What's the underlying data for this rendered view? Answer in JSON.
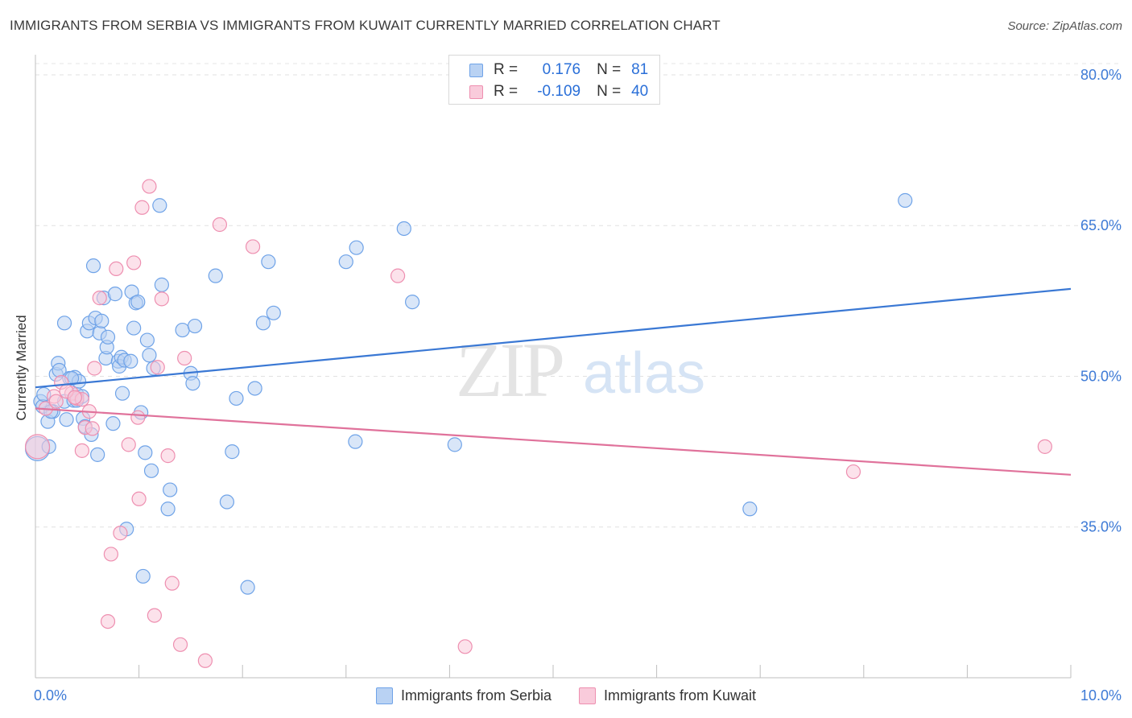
{
  "title": "IMMIGRANTS FROM SERBIA VS IMMIGRANTS FROM KUWAIT CURRENTLY MARRIED CORRELATION CHART",
  "source": "Source: ZipAtlas.com",
  "watermark": {
    "zip": "ZIP",
    "atlas": "atlas"
  },
  "legend": {
    "r_label": "R =",
    "n_label": "N =",
    "rows": [
      {
        "r": "0.176",
        "n": "81",
        "color": "#6fa3e8",
        "fill": "#b9d2f3"
      },
      {
        "r": "-0.109",
        "n": "40",
        "color": "#ee8fb0",
        "fill": "#f9cbdb"
      }
    ]
  },
  "bottom_legend": [
    "Immigrants from Serbia",
    "Immigrants from Kuwait"
  ],
  "chart_data": {
    "type": "scatter",
    "title": "IMMIGRANTS FROM SERBIA VS IMMIGRANTS FROM KUWAIT CURRENTLY MARRIED CORRELATION CHART",
    "xlabel": "",
    "ylabel": "Currently Married",
    "xlim": [
      0,
      10
    ],
    "ylim": [
      20,
      82
    ],
    "x_tick_labels": [
      "0.0%",
      "10.0%"
    ],
    "y_ticks": [
      35,
      50,
      65,
      80
    ],
    "y_tick_labels": [
      "35.0%",
      "50.0%",
      "65.0%",
      "80.0%"
    ],
    "grid": true,
    "series": [
      {
        "name": "Immigrants from Serbia",
        "color": "#3a78d4",
        "marker_fill": "#b9d2f3",
        "marker_stroke": "#6fa3e8",
        "trend": {
          "x": [
            0.0,
            10.0
          ],
          "y": [
            48.9,
            58.7
          ]
        },
        "points": [
          {
            "x": 0.02,
            "y": 42.8,
            "big": true
          },
          {
            "x": 0.05,
            "y": 47.5
          },
          {
            "x": 0.07,
            "y": 47.0
          },
          {
            "x": 0.08,
            "y": 48.2
          },
          {
            "x": 0.12,
            "y": 45.5
          },
          {
            "x": 0.13,
            "y": 43.0
          },
          {
            "x": 0.17,
            "y": 46.5
          },
          {
            "x": 0.2,
            "y": 50.2
          },
          {
            "x": 0.22,
            "y": 51.3
          },
          {
            "x": 0.23,
            "y": 50.6
          },
          {
            "x": 0.28,
            "y": 47.5
          },
          {
            "x": 0.28,
            "y": 55.3
          },
          {
            "x": 0.3,
            "y": 45.7
          },
          {
            "x": 0.33,
            "y": 49.8
          },
          {
            "x": 0.37,
            "y": 47.6
          },
          {
            "x": 0.38,
            "y": 49.9
          },
          {
            "x": 0.4,
            "y": 48.2
          },
          {
            "x": 0.4,
            "y": 47.6
          },
          {
            "x": 0.42,
            "y": 49.5
          },
          {
            "x": 0.45,
            "y": 48.0
          },
          {
            "x": 0.46,
            "y": 45.8
          },
          {
            "x": 0.48,
            "y": 45.0
          },
          {
            "x": 0.5,
            "y": 54.5
          },
          {
            "x": 0.52,
            "y": 55.3
          },
          {
            "x": 0.54,
            "y": 44.2
          },
          {
            "x": 0.56,
            "y": 61.0
          },
          {
            "x": 0.58,
            "y": 55.8
          },
          {
            "x": 0.6,
            "y": 42.2
          },
          {
            "x": 0.62,
            "y": 54.3
          },
          {
            "x": 0.64,
            "y": 55.5
          },
          {
            "x": 0.66,
            "y": 57.8
          },
          {
            "x": 0.68,
            "y": 51.8
          },
          {
            "x": 0.69,
            "y": 52.9
          },
          {
            "x": 0.7,
            "y": 53.9
          },
          {
            "x": 0.75,
            "y": 45.3
          },
          {
            "x": 0.77,
            "y": 58.2
          },
          {
            "x": 0.8,
            "y": 51.5
          },
          {
            "x": 0.81,
            "y": 51.0
          },
          {
            "x": 0.83,
            "y": 51.9
          },
          {
            "x": 0.84,
            "y": 48.3
          },
          {
            "x": 0.86,
            "y": 51.6
          },
          {
            "x": 0.88,
            "y": 34.8
          },
          {
            "x": 0.92,
            "y": 51.5
          },
          {
            "x": 0.93,
            "y": 58.4
          },
          {
            "x": 0.95,
            "y": 54.8
          },
          {
            "x": 0.97,
            "y": 57.3
          },
          {
            "x": 0.99,
            "y": 57.4
          },
          {
            "x": 1.02,
            "y": 46.4
          },
          {
            "x": 1.04,
            "y": 30.1
          },
          {
            "x": 1.06,
            "y": 42.4
          },
          {
            "x": 1.08,
            "y": 53.6
          },
          {
            "x": 1.1,
            "y": 52.1
          },
          {
            "x": 1.12,
            "y": 40.6
          },
          {
            "x": 1.14,
            "y": 50.8
          },
          {
            "x": 1.2,
            "y": 67.0
          },
          {
            "x": 1.22,
            "y": 59.1
          },
          {
            "x": 1.28,
            "y": 36.8
          },
          {
            "x": 1.3,
            "y": 38.7
          },
          {
            "x": 1.42,
            "y": 54.6
          },
          {
            "x": 1.5,
            "y": 50.3
          },
          {
            "x": 1.52,
            "y": 49.3
          },
          {
            "x": 1.54,
            "y": 55.0
          },
          {
            "x": 1.74,
            "y": 60.0
          },
          {
            "x": 1.85,
            "y": 37.5
          },
          {
            "x": 1.9,
            "y": 42.5
          },
          {
            "x": 1.94,
            "y": 47.8
          },
          {
            "x": 2.05,
            "y": 29.0
          },
          {
            "x": 2.12,
            "y": 48.8
          },
          {
            "x": 2.2,
            "y": 55.3
          },
          {
            "x": 2.25,
            "y": 61.4
          },
          {
            "x": 2.3,
            "y": 56.3
          },
          {
            "x": 3.0,
            "y": 61.4
          },
          {
            "x": 3.09,
            "y": 43.5
          },
          {
            "x": 3.1,
            "y": 62.8
          },
          {
            "x": 3.56,
            "y": 64.7
          },
          {
            "x": 3.64,
            "y": 57.4
          },
          {
            "x": 4.05,
            "y": 43.2
          },
          {
            "x": 6.9,
            "y": 36.8
          },
          {
            "x": 8.4,
            "y": 67.5
          },
          {
            "x": 0.15,
            "y": 46.5
          },
          {
            "x": 0.35,
            "y": 49.8
          }
        ]
      },
      {
        "name": "Immigrants from Kuwait",
        "color": "#e0729b",
        "marker_fill": "#f9cbdb",
        "marker_stroke": "#ee8fb0",
        "trend": {
          "x": [
            0.0,
            10.0
          ],
          "y": [
            46.8,
            40.2
          ]
        },
        "points": [
          {
            "x": 0.02,
            "y": 43.0,
            "big": true
          },
          {
            "x": 0.1,
            "y": 46.8
          },
          {
            "x": 0.18,
            "y": 48.0
          },
          {
            "x": 0.25,
            "y": 49.4
          },
          {
            "x": 0.35,
            "y": 48.3
          },
          {
            "x": 0.4,
            "y": 47.8
          },
          {
            "x": 0.45,
            "y": 47.7
          },
          {
            "x": 0.48,
            "y": 44.9
          },
          {
            "x": 0.52,
            "y": 46.5
          },
          {
            "x": 0.45,
            "y": 42.6
          },
          {
            "x": 0.57,
            "y": 50.8
          },
          {
            "x": 0.62,
            "y": 57.8
          },
          {
            "x": 0.7,
            "y": 25.6
          },
          {
            "x": 0.73,
            "y": 32.3
          },
          {
            "x": 0.78,
            "y": 60.7
          },
          {
            "x": 0.82,
            "y": 34.4
          },
          {
            "x": 0.9,
            "y": 43.2
          },
          {
            "x": 0.95,
            "y": 61.3
          },
          {
            "x": 0.99,
            "y": 45.9
          },
          {
            "x": 1.0,
            "y": 37.8
          },
          {
            "x": 1.03,
            "y": 66.8
          },
          {
            "x": 1.1,
            "y": 68.9
          },
          {
            "x": 1.15,
            "y": 26.2
          },
          {
            "x": 1.18,
            "y": 50.9
          },
          {
            "x": 1.22,
            "y": 57.7
          },
          {
            "x": 1.28,
            "y": 42.1
          },
          {
            "x": 1.32,
            "y": 29.4
          },
          {
            "x": 1.4,
            "y": 23.3
          },
          {
            "x": 1.44,
            "y": 51.8
          },
          {
            "x": 1.64,
            "y": 21.7
          },
          {
            "x": 1.78,
            "y": 65.1
          },
          {
            "x": 2.1,
            "y": 62.9
          },
          {
            "x": 3.5,
            "y": 60.0
          },
          {
            "x": 4.15,
            "y": 23.1
          },
          {
            "x": 7.9,
            "y": 40.5
          },
          {
            "x": 9.75,
            "y": 43.0
          },
          {
            "x": 0.3,
            "y": 48.5
          },
          {
            "x": 0.55,
            "y": 44.8
          },
          {
            "x": 0.38,
            "y": 47.9
          },
          {
            "x": 0.2,
            "y": 47.5
          }
        ]
      }
    ]
  }
}
